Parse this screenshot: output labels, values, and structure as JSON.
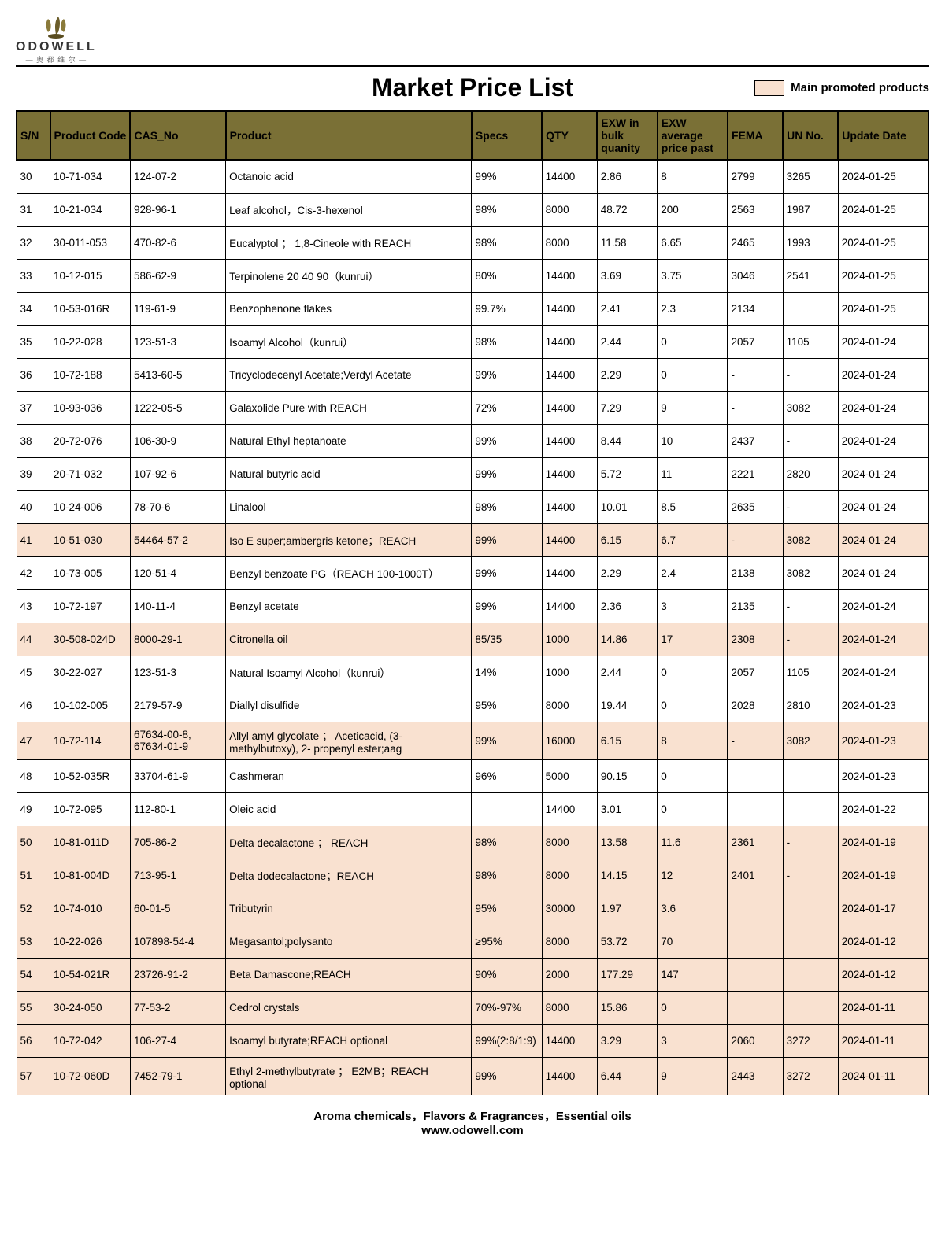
{
  "brand": {
    "name": "ODOWELL",
    "sub": "— 奥 都 维 尔 —"
  },
  "title": "Market Price List",
  "legend": "Main promoted products",
  "columns": [
    "S/N",
    "Product Code",
    "CAS_No",
    "Product",
    "Specs",
    "QTY",
    "EXW in bulk quanity",
    "EXW average price past",
    "FEMA",
    "UN No.",
    "Update Date"
  ],
  "footer1": "Aroma chemicals，Flavors & Fragrances，Essential oils",
  "footer2": "www.odowell.com",
  "rows": [
    {
      "sn": "30",
      "code": "10-71-034",
      "cas": "124-07-2",
      "product": "Octanoic acid",
      "specs": "99%",
      "qty": "14400",
      "exw1": "2.86",
      "exw2": "8",
      "fema": "2799",
      "un": "3265",
      "date": "2024-01-25",
      "p": false
    },
    {
      "sn": "31",
      "code": "10-21-034",
      "cas": "928-96-1",
      "product": "Leaf alcohol，Cis-3-hexenol",
      "specs": "98%",
      "qty": "8000",
      "exw1": "48.72",
      "exw2": "200",
      "fema": "2563",
      "un": "1987",
      "date": "2024-01-25",
      "p": false
    },
    {
      "sn": "32",
      "code": "30-011-053",
      "cas": "470-82-6",
      "product": "Eucalyptol ； 1,8-Cineole with REACH",
      "specs": "98%",
      "qty": "8000",
      "exw1": "11.58",
      "exw2": "6.65",
      "fema": "2465",
      "un": "1993",
      "date": "2024-01-25",
      "p": false
    },
    {
      "sn": "33",
      "code": "10-12-015",
      "cas": "586-62-9",
      "product": "Terpinolene 20 40 90（kunrui）",
      "specs": "80%",
      "qty": "14400",
      "exw1": "3.69",
      "exw2": "3.75",
      "fema": "3046",
      "un": "2541",
      "date": "2024-01-25",
      "p": false
    },
    {
      "sn": "34",
      "code": "10-53-016R",
      "cas": "119-61-9",
      "product": "Benzophenone flakes",
      "specs": "99.7%",
      "qty": "14400",
      "exw1": "2.41",
      "exw2": "2.3",
      "fema": "2134",
      "un": "",
      "date": "2024-01-25",
      "p": false
    },
    {
      "sn": "35",
      "code": "10-22-028",
      "cas": "123-51-3",
      "product": "Isoamyl Alcohol（kunrui）",
      "specs": "98%",
      "qty": "14400",
      "exw1": "2.44",
      "exw2": "0",
      "fema": "2057",
      "un": "1105",
      "date": "2024-01-24",
      "p": false
    },
    {
      "sn": "36",
      "code": "10-72-188",
      "cas": "5413-60-5",
      "product": "Tricyclodecenyl Acetate;Verdyl Acetate",
      "specs": "99%",
      "qty": "14400",
      "exw1": "2.29",
      "exw2": "0",
      "fema": "-",
      "un": "-",
      "date": "2024-01-24",
      "p": false
    },
    {
      "sn": "37",
      "code": "10-93-036",
      "cas": "1222-05-5",
      "product": "Galaxolide Pure with REACH",
      "specs": "72%",
      "qty": "14400",
      "exw1": "7.29",
      "exw2": "9",
      "fema": "-",
      "un": "3082",
      "date": "2024-01-24",
      "p": false
    },
    {
      "sn": "38",
      "code": "20-72-076",
      "cas": "106-30-9",
      "product": "Natural Ethyl heptanoate",
      "specs": "99%",
      "qty": "14400",
      "exw1": "8.44",
      "exw2": "10",
      "fema": "2437",
      "un": "-",
      "date": "2024-01-24",
      "p": false
    },
    {
      "sn": "39",
      "code": "20-71-032",
      "cas": "107-92-6",
      "product": "Natural butyric acid",
      "specs": "99%",
      "qty": "14400",
      "exw1": "5.72",
      "exw2": "11",
      "fema": "2221",
      "un": "2820",
      "date": "2024-01-24",
      "p": false
    },
    {
      "sn": "40",
      "code": "10-24-006",
      "cas": "78-70-6",
      "product": "Linalool",
      "specs": "98%",
      "qty": "14400",
      "exw1": "10.01",
      "exw2": "8.5",
      "fema": "2635",
      "un": "-",
      "date": "2024-01-24",
      "p": false
    },
    {
      "sn": "41",
      "code": "10-51-030",
      "cas": "54464-57-2",
      "product": "Iso E super;ambergris ketone；REACH",
      "specs": "99%",
      "qty": "14400",
      "exw1": "6.15",
      "exw2": "6.7",
      "fema": "-",
      "un": "3082",
      "date": "2024-01-24",
      "p": true
    },
    {
      "sn": "42",
      "code": "10-73-005",
      "cas": "120-51-4",
      "product": "Benzyl benzoate PG（REACH 100-1000T）",
      "specs": "99%",
      "qty": "14400",
      "exw1": "2.29",
      "exw2": "2.4",
      "fema": "2138",
      "un": "3082",
      "date": "2024-01-24",
      "p": false
    },
    {
      "sn": "43",
      "code": "10-72-197",
      "cas": "140-11-4",
      "product": "Benzyl acetate",
      "specs": "99%",
      "qty": "14400",
      "exw1": "2.36",
      "exw2": "3",
      "fema": "2135",
      "un": "-",
      "date": "2024-01-24",
      "p": false
    },
    {
      "sn": "44",
      "code": "30-508-024D",
      "cas": "8000-29-1",
      "product": "Citronella oil",
      "specs": "85/35",
      "qty": "1000",
      "exw1": "14.86",
      "exw2": "17",
      "fema": "2308",
      "un": "-",
      "date": "2024-01-24",
      "p": true
    },
    {
      "sn": "45",
      "code": "30-22-027",
      "cas": "123-51-3",
      "product": "Natural Isoamyl Alcohol（kunrui）",
      "specs": "14%",
      "qty": "1000",
      "exw1": "2.44",
      "exw2": "0",
      "fema": "2057",
      "un": "1105",
      "date": "2024-01-24",
      "p": false
    },
    {
      "sn": "46",
      "code": "10-102-005",
      "cas": "2179-57-9",
      "product": "Diallyl disulfide",
      "specs": "95%",
      "qty": "8000",
      "exw1": "19.44",
      "exw2": "0",
      "fema": "2028",
      "un": "2810",
      "date": "2024-01-23",
      "p": false
    },
    {
      "sn": "47",
      "code": "10-72-114",
      "cas": "67634-00-8, 67634-01-9",
      "product": "Allyl amyl glycolate ； Aceticacid, (3-methylbutoxy), 2- propenyl ester;aag",
      "specs": "99%",
      "qty": "16000",
      "exw1": "6.15",
      "exw2": "8",
      "fema": "-",
      "un": "3082",
      "date": "2024-01-23",
      "p": true
    },
    {
      "sn": "48",
      "code": "10-52-035R",
      "cas": "33704-61-9",
      "product": "Cashmeran",
      "specs": "96%",
      "qty": "5000",
      "exw1": "90.15",
      "exw2": "0",
      "fema": "",
      "un": "",
      "date": "2024-01-23",
      "p": false
    },
    {
      "sn": "49",
      "code": "10-72-095",
      "cas": "112-80-1",
      "product": "Oleic acid",
      "specs": "",
      "qty": "14400",
      "exw1": "3.01",
      "exw2": "0",
      "fema": "",
      "un": "",
      "date": "2024-01-22",
      "p": false
    },
    {
      "sn": "50",
      "code": "10-81-011D",
      "cas": "705-86-2",
      "product": "Delta decalactone ； REACH",
      "specs": "98%",
      "qty": "8000",
      "exw1": "13.58",
      "exw2": "11.6",
      "fema": "2361",
      "un": "-",
      "date": "2024-01-19",
      "p": true
    },
    {
      "sn": "51",
      "code": "10-81-004D",
      "cas": "713-95-1",
      "product": "Delta dodecalactone；REACH",
      "specs": "98%",
      "qty": "8000",
      "exw1": "14.15",
      "exw2": "12",
      "fema": "2401",
      "un": "-",
      "date": "2024-01-19",
      "p": true
    },
    {
      "sn": "52",
      "code": "10-74-010",
      "cas": "60-01-5",
      "product": "Tributyrin",
      "specs": "95%",
      "qty": "30000",
      "exw1": "1.97",
      "exw2": "3.6",
      "fema": "",
      "un": "",
      "date": "2024-01-17",
      "p": true
    },
    {
      "sn": "53",
      "code": "10-22-026",
      "cas": "107898-54-4",
      "product": "Megasantol;polysanto",
      "specs": "≥95%",
      "qty": "8000",
      "exw1": "53.72",
      "exw2": "70",
      "fema": "",
      "un": "",
      "date": "2024-01-12",
      "p": true
    },
    {
      "sn": "54",
      "code": "10-54-021R",
      "cas": "23726-91-2",
      "product": "Beta Damascone;REACH",
      "specs": "90%",
      "qty": "2000",
      "exw1": "177.29",
      "exw2": "147",
      "fema": "",
      "un": "",
      "date": "2024-01-12",
      "p": true
    },
    {
      "sn": "55",
      "code": "30-24-050",
      "cas": "77-53-2",
      "product": "Cedrol crystals",
      "specs": "70%-97%",
      "qty": "8000",
      "exw1": "15.86",
      "exw2": "0",
      "fema": "",
      "un": "",
      "date": "2024-01-11",
      "p": true
    },
    {
      "sn": "56",
      "code": "10-72-042",
      "cas": "106-27-4",
      "product": "Isoamyl butyrate;REACH optional",
      "specs": "99%(2:8/1:9)",
      "qty": "14400",
      "exw1": "3.29",
      "exw2": "3",
      "fema": "2060",
      "un": "3272",
      "date": "2024-01-11",
      "p": true
    },
    {
      "sn": "57",
      "code": "10-72-060D",
      "cas": "7452-79-1",
      "product": "Ethyl 2-methylbutyrate ； E2MB；REACH optional",
      "specs": "99%",
      "qty": "14400",
      "exw1": "6.44",
      "exw2": "9",
      "fema": "2443",
      "un": "3272",
      "date": "2024-01-11",
      "p": true
    }
  ]
}
